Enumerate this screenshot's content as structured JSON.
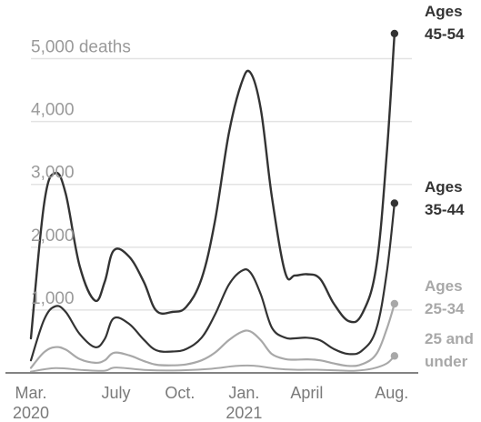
{
  "chart_data": {
    "type": "line",
    "title": "",
    "xlabel": "",
    "ylabel": "deaths",
    "y_unit_label": "5,000 deaths",
    "ylim": [
      0,
      5500
    ],
    "grid": true,
    "xlim": [
      "2020-03-01",
      "2021-08-30"
    ],
    "yticks": [
      {
        "value": 1000,
        "label": "1,000"
      },
      {
        "value": 2000,
        "label": "2,000"
      },
      {
        "value": 3000,
        "label": "3,000"
      },
      {
        "value": 4000,
        "label": "4,000"
      },
      {
        "value": 5000,
        "label": "5,000 deaths"
      }
    ],
    "xticks": [
      {
        "date": "2020-03-01",
        "label": "Mar.",
        "sub": "2020"
      },
      {
        "date": "2020-07-01",
        "label": "July",
        "sub": ""
      },
      {
        "date": "2020-10-01",
        "label": "Oct.",
        "sub": ""
      },
      {
        "date": "2021-01-01",
        "label": "Jan.",
        "sub": "2021"
      },
      {
        "date": "2021-04-01",
        "label": "April",
        "sub": ""
      },
      {
        "date": "2021-08-01",
        "label": "Aug.",
        "sub": ""
      }
    ],
    "series": [
      {
        "name": "Ages 45-54",
        "label_lines": [
          "Ages",
          "45-54"
        ],
        "color": "#333333",
        "points": [
          [
            "2020-03-01",
            550
          ],
          [
            "2020-03-20",
            2700
          ],
          [
            "2020-04-05",
            3180
          ],
          [
            "2020-04-20",
            2850
          ],
          [
            "2020-05-10",
            1700
          ],
          [
            "2020-06-01",
            1150
          ],
          [
            "2020-06-15",
            1450
          ],
          [
            "2020-06-28",
            1950
          ],
          [
            "2020-07-20",
            1850
          ],
          [
            "2020-08-10",
            1450
          ],
          [
            "2020-08-28",
            990
          ],
          [
            "2020-09-20",
            970
          ],
          [
            "2020-10-10",
            1050
          ],
          [
            "2020-11-01",
            1500
          ],
          [
            "2020-11-20",
            2400
          ],
          [
            "2020-12-10",
            3800
          ],
          [
            "2020-12-28",
            4600
          ],
          [
            "2021-01-10",
            4780
          ],
          [
            "2021-01-25",
            4200
          ],
          [
            "2021-02-10",
            2800
          ],
          [
            "2021-03-01",
            1600
          ],
          [
            "2021-03-15",
            1550
          ],
          [
            "2021-04-01",
            1570
          ],
          [
            "2021-04-20",
            1500
          ],
          [
            "2021-05-10",
            1100
          ],
          [
            "2021-06-01",
            820
          ],
          [
            "2021-06-20",
            950
          ],
          [
            "2021-07-10",
            1700
          ],
          [
            "2021-07-25",
            3500
          ],
          [
            "2021-08-05",
            5400
          ]
        ]
      },
      {
        "name": "Ages 35-44",
        "label_lines": [
          "Ages",
          "35-44"
        ],
        "color": "#333333",
        "points": [
          [
            "2020-03-01",
            200
          ],
          [
            "2020-03-20",
            850
          ],
          [
            "2020-04-05",
            1060
          ],
          [
            "2020-04-20",
            970
          ],
          [
            "2020-05-10",
            620
          ],
          [
            "2020-06-01",
            410
          ],
          [
            "2020-06-15",
            540
          ],
          [
            "2020-06-28",
            870
          ],
          [
            "2020-07-20",
            780
          ],
          [
            "2020-08-10",
            530
          ],
          [
            "2020-08-28",
            360
          ],
          [
            "2020-09-20",
            340
          ],
          [
            "2020-10-10",
            380
          ],
          [
            "2020-11-01",
            560
          ],
          [
            "2020-11-20",
            920
          ],
          [
            "2020-12-10",
            1400
          ],
          [
            "2020-12-28",
            1620
          ],
          [
            "2021-01-10",
            1600
          ],
          [
            "2021-01-25",
            1250
          ],
          [
            "2021-02-10",
            720
          ],
          [
            "2021-03-01",
            560
          ],
          [
            "2021-03-15",
            550
          ],
          [
            "2021-04-01",
            560
          ],
          [
            "2021-04-20",
            520
          ],
          [
            "2021-05-10",
            380
          ],
          [
            "2021-06-01",
            300
          ],
          [
            "2021-06-20",
            360
          ],
          [
            "2021-07-10",
            700
          ],
          [
            "2021-07-25",
            1600
          ],
          [
            "2021-08-05",
            2700
          ]
        ]
      },
      {
        "name": "Ages 25-34",
        "label_lines": [
          "Ages",
          "25-34"
        ],
        "color": "#a8a8a8",
        "points": [
          [
            "2020-03-01",
            80
          ],
          [
            "2020-03-20",
            330
          ],
          [
            "2020-04-05",
            410
          ],
          [
            "2020-04-20",
            370
          ],
          [
            "2020-05-10",
            220
          ],
          [
            "2020-06-01",
            160
          ],
          [
            "2020-06-15",
            200
          ],
          [
            "2020-06-28",
            320
          ],
          [
            "2020-07-20",
            280
          ],
          [
            "2020-08-10",
            190
          ],
          [
            "2020-08-28",
            130
          ],
          [
            "2020-09-20",
            120
          ],
          [
            "2020-10-10",
            135
          ],
          [
            "2020-11-01",
            200
          ],
          [
            "2020-11-20",
            320
          ],
          [
            "2020-12-10",
            520
          ],
          [
            "2020-12-28",
            650
          ],
          [
            "2021-01-10",
            660
          ],
          [
            "2021-01-25",
            520
          ],
          [
            "2021-02-10",
            300
          ],
          [
            "2021-03-01",
            220
          ],
          [
            "2021-03-15",
            210
          ],
          [
            "2021-04-01",
            215
          ],
          [
            "2021-04-20",
            200
          ],
          [
            "2021-05-10",
            150
          ],
          [
            "2021-06-01",
            110
          ],
          [
            "2021-06-20",
            140
          ],
          [
            "2021-07-10",
            300
          ],
          [
            "2021-07-25",
            700
          ],
          [
            "2021-08-05",
            1100
          ]
        ]
      },
      {
        "name": "25 and under",
        "label_lines": [
          "25 and",
          "under"
        ],
        "color": "#a8a8a8",
        "points": [
          [
            "2020-03-01",
            20
          ],
          [
            "2020-04-05",
            75
          ],
          [
            "2020-05-15",
            45
          ],
          [
            "2020-06-15",
            35
          ],
          [
            "2020-07-01",
            85
          ],
          [
            "2020-08-15",
            45
          ],
          [
            "2020-10-01",
            40
          ],
          [
            "2020-11-15",
            65
          ],
          [
            "2020-12-20",
            110
          ],
          [
            "2021-01-15",
            115
          ],
          [
            "2021-02-15",
            70
          ],
          [
            "2021-03-15",
            50
          ],
          [
            "2021-04-15",
            50
          ],
          [
            "2021-05-15",
            40
          ],
          [
            "2021-06-10",
            35
          ],
          [
            "2021-07-05",
            70
          ],
          [
            "2021-07-25",
            150
          ],
          [
            "2021-08-05",
            270
          ]
        ]
      }
    ]
  }
}
